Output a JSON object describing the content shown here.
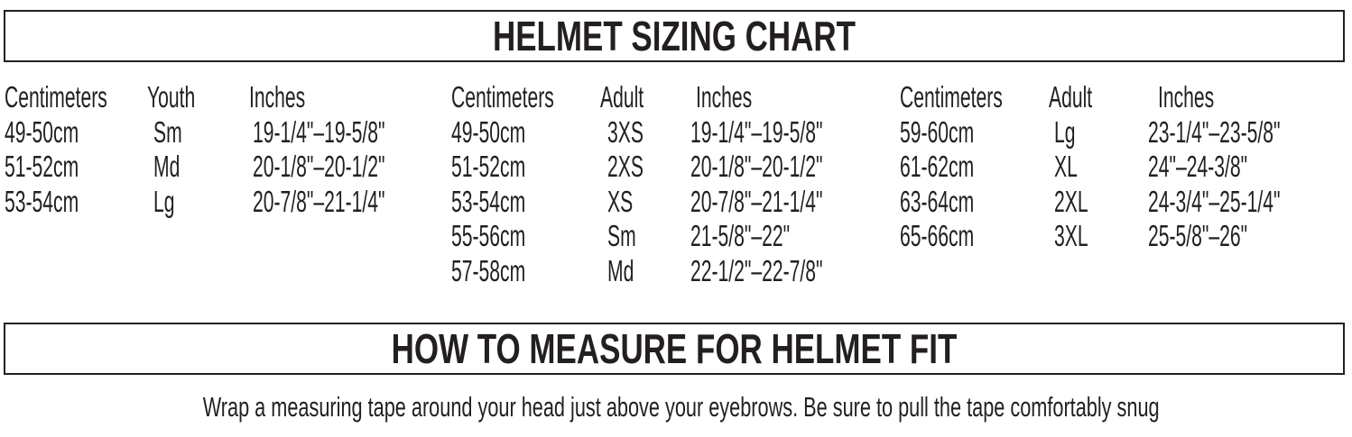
{
  "sizing_title": "HELMET SIZING CHART",
  "tables": [
    {
      "headers": [
        "Centimeters",
        "Youth",
        "Inches"
      ],
      "rows": [
        [
          "49-50cm",
          "Sm",
          "19-1/4\"–19-5/8\""
        ],
        [
          "51-52cm",
          "Md",
          "20-1/8\"–20-1/2\""
        ],
        [
          "53-54cm",
          "Lg",
          "20-7/8\"–21-1/4\""
        ]
      ]
    },
    {
      "headers": [
        "Centimeters",
        "Adult",
        "Inches"
      ],
      "rows": [
        [
          "49-50cm",
          "3XS",
          "19-1/4\"–19-5/8\""
        ],
        [
          "51-52cm",
          "2XS",
          "20-1/8\"–20-1/2\""
        ],
        [
          "53-54cm",
          "XS",
          "20-7/8\"–21-1/4\""
        ],
        [
          "55-56cm",
          "Sm",
          "21-5/8\"–22\""
        ],
        [
          "57-58cm",
          "Md",
          "22-1/2\"–22-7/8\""
        ]
      ]
    },
    {
      "headers": [
        "Centimeters",
        "Adult",
        "Inches"
      ],
      "rows": [
        [
          "59-60cm",
          "Lg",
          "23-1/4\"–23-5/8\""
        ],
        [
          "61-62cm",
          "XL",
          "24\"–24-3/8\""
        ],
        [
          "63-64cm",
          "2XL",
          "24-3/4\"–25-1/4\""
        ],
        [
          "65-66cm",
          "3XL",
          "25-5/8\"–26\""
        ]
      ]
    }
  ],
  "measure_title": "HOW TO MEASURE FOR HELMET FIT",
  "measure_text": "Wrap a measuring tape around your head just above your eyebrows. Be sure to pull the tape comfortably snug"
}
